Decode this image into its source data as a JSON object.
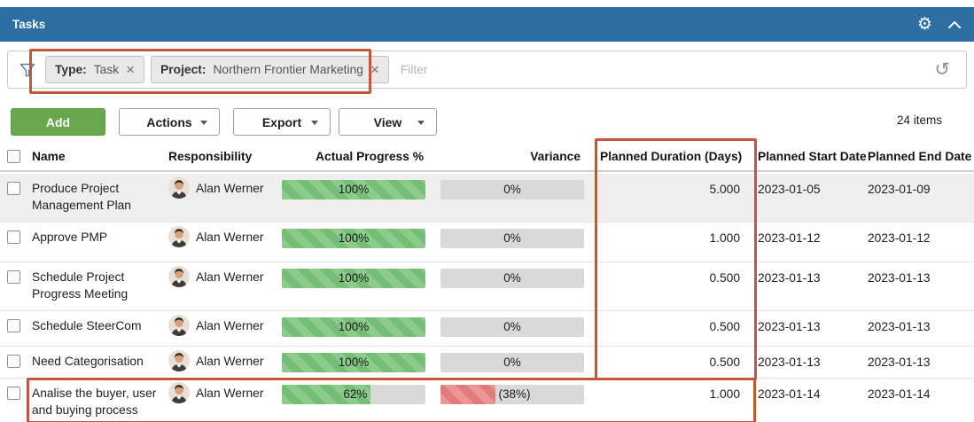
{
  "panel": {
    "title": "Tasks"
  },
  "filter_bar": {
    "chips": [
      {
        "label": "Type:",
        "value": "Task",
        "remove_icon": "×"
      },
      {
        "label": "Project:",
        "value": "Northern Frontier Marketing",
        "remove_icon": "×"
      }
    ],
    "placeholder": "Filter",
    "reset_icon": "↺"
  },
  "toolbar": {
    "add": "Add",
    "actions": "Actions",
    "export": "Export",
    "view": "View",
    "items_count": "24 items"
  },
  "table": {
    "columns": [
      "Name",
      "Responsibility",
      "Actual Progress %",
      "Variance",
      "Planned Duration (Days)",
      "Planned Start Date",
      "Planned End Date"
    ],
    "rows": [
      {
        "name": "Produce Project Management Plan",
        "responsibility": "Alan Werner",
        "progress": {
          "label": "100%",
          "pct": 100
        },
        "variance": {
          "label": "0%",
          "pct": 0,
          "negative": false
        },
        "planned_duration": "5.000",
        "planned_start": "2023-01-05",
        "planned_end": "2023-01-09"
      },
      {
        "name": "Approve PMP",
        "responsibility": "Alan Werner",
        "progress": {
          "label": "100%",
          "pct": 100
        },
        "variance": {
          "label": "0%",
          "pct": 0,
          "negative": false
        },
        "planned_duration": "1.000",
        "planned_start": "2023-01-12",
        "planned_end": "2023-01-12"
      },
      {
        "name": "Schedule Project Progress Meeting",
        "responsibility": "Alan Werner",
        "progress": {
          "label": "100%",
          "pct": 100
        },
        "variance": {
          "label": "0%",
          "pct": 0,
          "negative": false
        },
        "planned_duration": "0.500",
        "planned_start": "2023-01-13",
        "planned_end": "2023-01-13"
      },
      {
        "name": "Schedule SteerCom",
        "responsibility": "Alan Werner",
        "progress": {
          "label": "100%",
          "pct": 100
        },
        "variance": {
          "label": "0%",
          "pct": 0,
          "negative": false
        },
        "planned_duration": "0.500",
        "planned_start": "2023-01-13",
        "planned_end": "2023-01-13"
      },
      {
        "name": "Need Categorisation",
        "responsibility": "Alan Werner",
        "progress": {
          "label": "100%",
          "pct": 100
        },
        "variance": {
          "label": "0%",
          "pct": 0,
          "negative": false
        },
        "planned_duration": "0.500",
        "planned_start": "2023-01-13",
        "planned_end": "2023-01-13"
      },
      {
        "name": "Analise the buyer, user and buying process",
        "responsibility": "Alan Werner",
        "progress": {
          "label": "62%",
          "pct": 62
        },
        "variance": {
          "label": "(38%)",
          "pct": 38,
          "negative": true
        },
        "planned_duration": "1.000",
        "planned_start": "2023-01-14",
        "planned_end": "2023-01-14"
      }
    ]
  },
  "colors": {
    "titlebar_blue": "#2c6da4",
    "annotation_orange": "#c2583a",
    "add_button_green": "#68a74d",
    "progress_green_light": "#8ccb8c",
    "progress_green_dark": "#74bf75",
    "variance_red_light": "#ec9595",
    "variance_red_dark": "#e27c7c",
    "neutral_bar_gray": "#d9d9d9"
  },
  "icons": {
    "titlebar": [
      "settings-gear",
      "collapse-chevron-up"
    ],
    "filter_bar": [
      "filter-funnel",
      "reset-counterclockwise"
    ],
    "chip": [
      "close-x"
    ]
  }
}
